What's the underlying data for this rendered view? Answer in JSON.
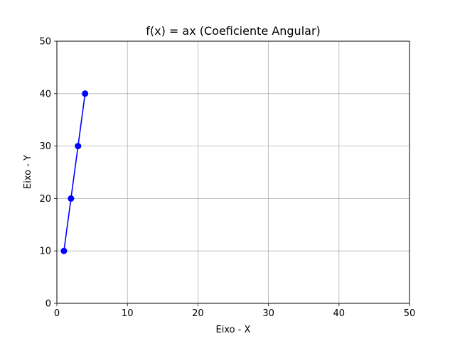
{
  "chart_data": {
    "type": "line",
    "title": "f(x) = ax (Coeficiente Angular)",
    "xlabel": "Eixo - X",
    "ylabel": "Eixo - Y",
    "xlim": [
      0,
      50
    ],
    "ylim": [
      0,
      50
    ],
    "x_ticks": [
      "0",
      "10",
      "20",
      "30",
      "40",
      "50"
    ],
    "y_ticks": [
      "0",
      "10",
      "20",
      "30",
      "40",
      "50"
    ],
    "grid": true,
    "series": [
      {
        "color": "#0000ff",
        "marker": "circle",
        "x": [
          1,
          2,
          3,
          4
        ],
        "y": [
          10,
          20,
          30,
          40
        ]
      }
    ]
  }
}
